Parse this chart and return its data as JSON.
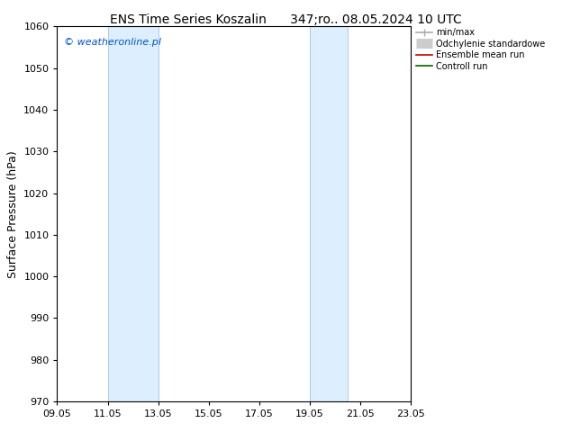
{
  "title_left": "ENS Time Series Koszalin",
  "title_right": "347;ro.. 08.05.2024 10 UTC",
  "ylabel": "Surface Pressure (hPa)",
  "ylim": [
    970,
    1060
  ],
  "yticks": [
    970,
    980,
    990,
    1000,
    1010,
    1020,
    1030,
    1040,
    1050,
    1060
  ],
  "xtick_labels": [
    "09.05",
    "11.05",
    "13.05",
    "15.05",
    "17.05",
    "19.05",
    "21.05",
    "23.05"
  ],
  "xtick_positions": [
    0,
    2,
    4,
    6,
    8,
    10,
    12,
    14
  ],
  "shaded_regions": [
    {
      "x_start": 2,
      "x_end": 4
    },
    {
      "x_start": 10,
      "x_end": 11.5
    }
  ],
  "shade_color": "#ddeeff",
  "shade_edge_color": "#aaccee",
  "watermark_text": "© weatheronline.pl",
  "watermark_color": "#0055cc",
  "background_color": "#ffffff",
  "plot_bg_color": "#ffffff",
  "legend_items": [
    {
      "label": "min/max",
      "color": "#aaaaaa",
      "lw": 1.2,
      "ls": "-",
      "type": "line_with_ticks"
    },
    {
      "label": "Odchylenie standardowe",
      "color": "#cccccc",
      "lw": 8,
      "ls": "-",
      "type": "thick_line"
    },
    {
      "label": "Ensemble mean run",
      "color": "#cc0000",
      "lw": 1.2,
      "ls": "-",
      "type": "line"
    },
    {
      "label": "Controll run",
      "color": "#006600",
      "lw": 1.2,
      "ls": "-",
      "type": "line"
    }
  ],
  "title_fontsize": 10,
  "axis_label_fontsize": 9,
  "tick_fontsize": 8,
  "watermark_fontsize": 8
}
